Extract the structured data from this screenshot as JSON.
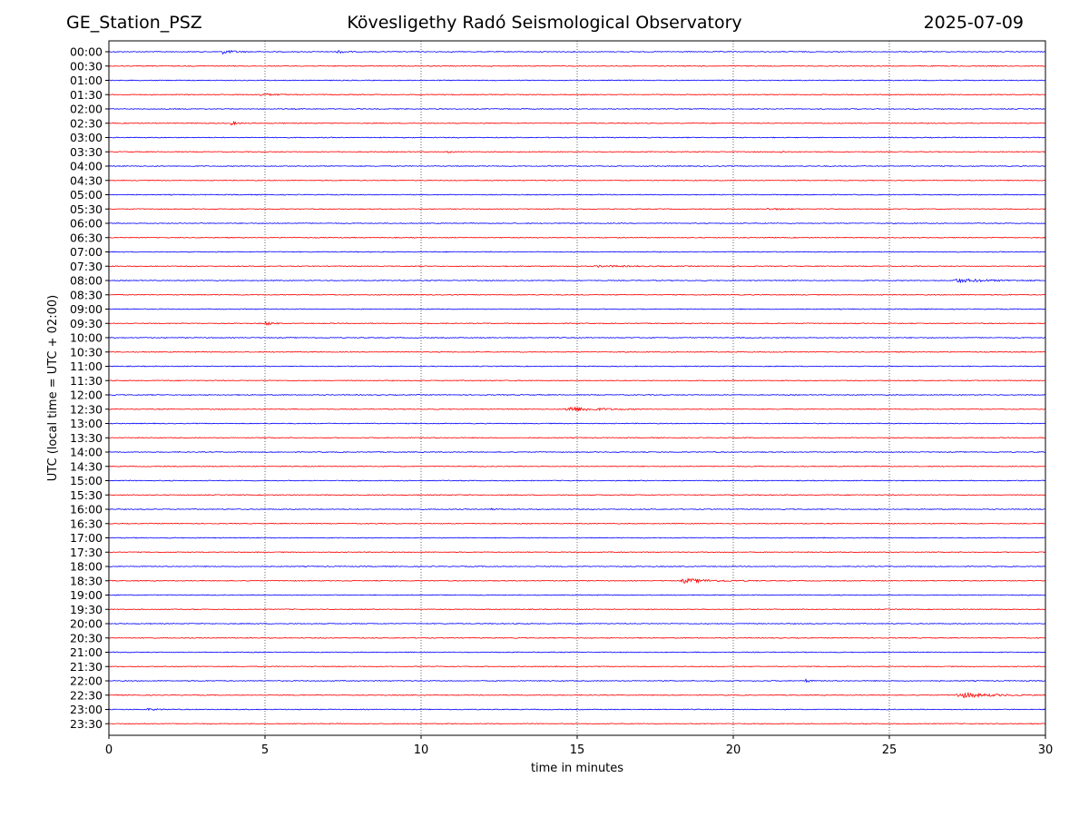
{
  "header": {
    "station": "GE_Station_PSZ",
    "observatory": "Kövesligethy Radó Seismological Observatory",
    "date": "2025-07-09"
  },
  "colors": {
    "even_rows": "#0000ff",
    "odd_rows": "#ff0000",
    "axes": "#000000",
    "grid": "#000000"
  },
  "chart_data": {
    "type": "line",
    "title": "Kövesligethy Radó Seismological Observatory",
    "xlabel": "time in minutes",
    "ylabel": "UTC (local time = UTC + 02:00)",
    "xlim": [
      0,
      30
    ],
    "xticks": [
      0,
      5,
      10,
      15,
      20,
      25,
      30
    ],
    "grid": "vertical dotted at x ticks",
    "row_labels": [
      "00:00",
      "00:30",
      "01:00",
      "01:30",
      "02:00",
      "02:30",
      "03:00",
      "03:30",
      "04:00",
      "04:30",
      "05:00",
      "05:30",
      "06:00",
      "06:30",
      "07:00",
      "07:30",
      "08:00",
      "08:30",
      "09:00",
      "09:30",
      "10:00",
      "10:30",
      "11:00",
      "11:30",
      "12:00",
      "12:30",
      "13:00",
      "13:30",
      "14:00",
      "14:30",
      "15:00",
      "15:30",
      "16:00",
      "16:30",
      "17:00",
      "17:30",
      "18:00",
      "18:30",
      "19:00",
      "19:30",
      "20:00",
      "20:30",
      "21:00",
      "21:30",
      "22:00",
      "22:30",
      "23:00",
      "23:30"
    ],
    "events": [
      {
        "row": "00:00",
        "start_min": 3.6,
        "duration_min": 1.0,
        "amplitude": 1.0
      },
      {
        "row": "00:00",
        "start_min": 7.3,
        "duration_min": 0.6,
        "amplitude": 0.9
      },
      {
        "row": "01:30",
        "start_min": 4.8,
        "duration_min": 1.2,
        "amplitude": 0.6
      },
      {
        "row": "02:30",
        "start_min": 3.9,
        "duration_min": 0.5,
        "amplitude": 0.9
      },
      {
        "row": "03:30",
        "start_min": 10.8,
        "duration_min": 0.5,
        "amplitude": 0.5
      },
      {
        "row": "03:30",
        "start_min": 21.5,
        "duration_min": 0.4,
        "amplitude": 0.5
      },
      {
        "row": "05:30",
        "start_min": 21.0,
        "duration_min": 1.5,
        "amplitude": 0.4
      },
      {
        "row": "07:30",
        "start_min": 15.5,
        "duration_min": 3.5,
        "amplitude": 0.35
      },
      {
        "row": "08:00",
        "start_min": 27.0,
        "duration_min": 3.0,
        "amplitude": 0.9
      },
      {
        "row": "09:30",
        "start_min": 5.0,
        "duration_min": 0.6,
        "amplitude": 0.9
      },
      {
        "row": "12:30",
        "start_min": 14.6,
        "duration_min": 2.5,
        "amplitude": 1.3
      },
      {
        "row": "16:00",
        "start_min": 12.2,
        "duration_min": 0.4,
        "amplitude": 0.5
      },
      {
        "row": "18:30",
        "start_min": 18.3,
        "duration_min": 2.5,
        "amplitude": 1.1
      },
      {
        "row": "22:00",
        "start_min": 22.3,
        "duration_min": 0.3,
        "amplitude": 1.3
      },
      {
        "row": "22:30",
        "start_min": 27.1,
        "duration_min": 2.9,
        "amplitude": 1.3
      },
      {
        "row": "23:00",
        "start_min": 1.2,
        "duration_min": 1.0,
        "amplitude": 0.4
      }
    ]
  }
}
